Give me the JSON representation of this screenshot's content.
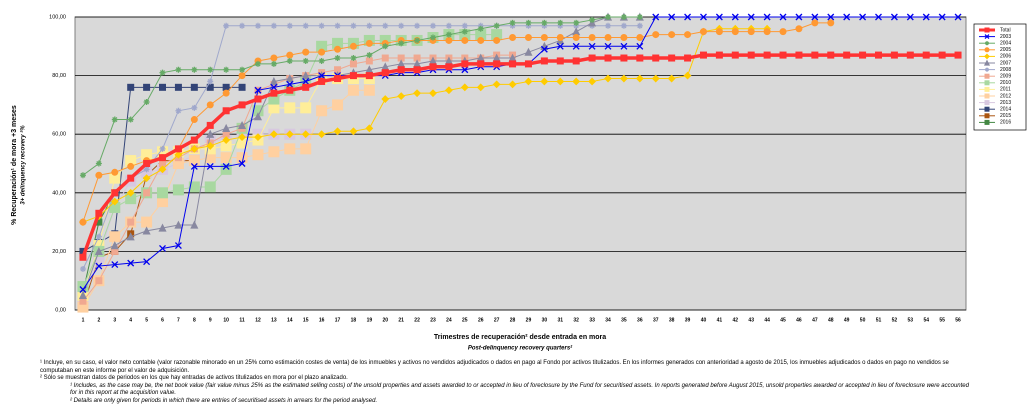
{
  "chart_data": {
    "type": "line",
    "y_title": "% Recuperación¹ de mora +3 meses",
    "y_subtitle": "3+ delinquency recovery ²%",
    "x_title": "Trimestres de recuperación² desde entrada en mora",
    "x_subtitle": "Post-delinquency recovery quarters²",
    "categories": [
      "1",
      "2",
      "3",
      "4",
      "5",
      "6",
      "7",
      "8",
      "9",
      "10",
      "11",
      "12",
      "13",
      "14",
      "15",
      "16",
      "17",
      "18",
      "19",
      "20",
      "21",
      "22",
      "23",
      "24",
      "25",
      "26",
      "27",
      "28",
      "29",
      "30",
      "31",
      "32",
      "33",
      "34",
      "35",
      "36",
      "37",
      "38",
      "39",
      "40",
      "41",
      "42",
      "43",
      "44",
      "45",
      "46",
      "47",
      "48",
      "49",
      "50",
      "51",
      "52",
      "53",
      "54",
      "55",
      "56"
    ],
    "ylim": [
      0,
      100
    ],
    "yticks": [
      {
        "value": 0,
        "label": "0,00"
      },
      {
        "value": 20,
        "label": "20,00"
      },
      {
        "value": 40,
        "label": "40,00"
      },
      {
        "value": 60,
        "label": "60,00"
      },
      {
        "value": 80,
        "label": "80,00"
      },
      {
        "value": 100,
        "label": "100,00"
      }
    ],
    "grid": true,
    "legend": "right",
    "series": [
      {
        "name": "Total",
        "color": "#ff3333",
        "marker": "square",
        "values": [
          18,
          33,
          40,
          45,
          50,
          52,
          55,
          58,
          63,
          68,
          70,
          72,
          74,
          75,
          76,
          78,
          79,
          80,
          80,
          81,
          82,
          82,
          83,
          83,
          84,
          84,
          84,
          84,
          84,
          85,
          85,
          85,
          86,
          86,
          86,
          86,
          86,
          86,
          86,
          87,
          87,
          87,
          87,
          87,
          87,
          87,
          87,
          87,
          87,
          87,
          87,
          87,
          87,
          87,
          87,
          87
        ]
      },
      {
        "name": "2003",
        "color": "#0000ee",
        "marker": "x",
        "values": [
          7,
          15,
          15.5,
          16,
          16.5,
          21,
          22,
          49,
          49,
          49,
          50,
          75,
          76,
          77,
          78,
          80,
          80,
          80,
          80,
          80,
          81,
          81,
          82,
          82,
          82,
          83,
          83,
          84,
          84,
          89,
          90,
          90,
          90,
          90,
          90,
          90,
          100,
          100,
          100,
          100,
          100,
          100,
          100,
          100,
          100,
          100,
          100,
          100,
          100,
          100,
          100,
          100,
          100,
          100,
          100,
          100
        ]
      },
      {
        "name": "2004",
        "color": "#66aa66",
        "marker": "star",
        "values": [
          46,
          50,
          65,
          65,
          71,
          81,
          82,
          82,
          82,
          82,
          82,
          84,
          84,
          85,
          85,
          85,
          86,
          86,
          87,
          90,
          91,
          92,
          93,
          94,
          95,
          96,
          97,
          98,
          98,
          98,
          98,
          98,
          99,
          100,
          100,
          100,
          null,
          null,
          null,
          null,
          null,
          null,
          null,
          null,
          null,
          null,
          null,
          null,
          null,
          null,
          null,
          null,
          null,
          null,
          null,
          null
        ]
      },
      {
        "name": "2005",
        "color": "#ff9933",
        "marker": "circle",
        "values": [
          30,
          46,
          47,
          49,
          51,
          52,
          55,
          65,
          70,
          74,
          80,
          85,
          86,
          87,
          88,
          88,
          89,
          90,
          91,
          91,
          92,
          92,
          92,
          92,
          92,
          92,
          92,
          93,
          93,
          93,
          93,
          93,
          93,
          93,
          93,
          93,
          94,
          94,
          94,
          95,
          95,
          95,
          95,
          95,
          95,
          96,
          98,
          98,
          null,
          null,
          null,
          null,
          null,
          null,
          null,
          null
        ]
      },
      {
        "name": "2006",
        "color": "#ffcc00",
        "marker": "diamond",
        "values": [
          30,
          32,
          37,
          40,
          45,
          48,
          53,
          55,
          56,
          58,
          59,
          59,
          60,
          60,
          60,
          60,
          61,
          61,
          62,
          72,
          73,
          74,
          74,
          75,
          76,
          76,
          77,
          77,
          78,
          78,
          78,
          78,
          78,
          79,
          79,
          79,
          79,
          79,
          80,
          95,
          96,
          96,
          96,
          96,
          null,
          null,
          null,
          null,
          null,
          null,
          null,
          null,
          null,
          null,
          null,
          null
        ]
      },
      {
        "name": "2007",
        "color": "#8888a0",
        "marker": "triangle",
        "values": [
          5,
          20,
          22,
          25,
          27,
          28,
          29,
          29,
          60,
          62,
          63,
          66,
          78,
          79,
          80,
          80,
          80,
          81,
          82,
          83,
          84,
          84,
          85,
          85,
          85,
          86,
          86,
          86,
          88,
          90,
          92,
          95,
          98,
          100,
          100,
          100,
          null,
          null,
          null,
          null,
          null,
          null,
          null,
          null,
          null,
          null,
          null,
          null,
          null,
          null,
          null,
          null,
          null,
          null,
          null,
          null
        ]
      },
      {
        "name": "2008",
        "color": "#a0a8cc",
        "marker": "star",
        "values": [
          14,
          25,
          40,
          45,
          48,
          55,
          68,
          69,
          78,
          97,
          97,
          97,
          97,
          97,
          97,
          97,
          97,
          97,
          97,
          97,
          97,
          97,
          97,
          97,
          97,
          97,
          97,
          97,
          97,
          97,
          97,
          97,
          97,
          97,
          97,
          97,
          null,
          null,
          null,
          null,
          null,
          null,
          null,
          null,
          null,
          null,
          null,
          null,
          null,
          null,
          null,
          null,
          null,
          null,
          null,
          null
        ]
      },
      {
        "name": "2009",
        "color": "#f0a890",
        "marker": "square",
        "values": [
          3,
          10,
          20,
          30,
          40,
          50,
          52,
          55,
          57,
          60,
          62,
          75,
          77,
          79,
          80,
          81,
          82,
          84,
          85,
          86,
          86,
          86,
          86,
          86,
          86,
          86,
          87,
          87,
          null,
          null,
          null,
          null,
          null,
          null,
          null,
          null,
          null,
          null,
          null,
          null,
          null,
          null,
          null,
          null,
          null,
          null,
          null,
          null,
          null,
          null,
          null,
          null,
          null,
          null,
          null,
          null
        ]
      },
      {
        "name": "2010",
        "color": "#a8d8a0",
        "marker": "square",
        "values": [
          8,
          20,
          35,
          38,
          40,
          40,
          41,
          42,
          42,
          48,
          62,
          68,
          72,
          75,
          78,
          90,
          91,
          91,
          92,
          92,
          92,
          92,
          93,
          94,
          94,
          94,
          94,
          null,
          null,
          null,
          null,
          null,
          null,
          null,
          null,
          null,
          null,
          null,
          null,
          null,
          null,
          null,
          null,
          null,
          null,
          null,
          null,
          null,
          null,
          null,
          null,
          null,
          null,
          null,
          null,
          null
        ]
      },
      {
        "name": "2011",
        "color": "#ffee99",
        "marker": "square",
        "values": [
          5,
          22,
          45,
          51,
          53,
          54,
          54,
          55,
          55,
          56,
          57,
          58,
          69,
          69,
          69,
          79,
          79,
          79,
          79,
          null,
          null,
          null,
          null,
          null,
          null,
          null,
          null,
          null,
          null,
          null,
          null,
          null,
          null,
          null,
          null,
          null,
          null,
          null,
          null,
          null,
          null,
          null,
          null,
          null,
          null,
          null,
          null,
          null,
          null,
          null,
          null,
          null,
          null,
          null,
          null,
          null
        ]
      },
      {
        "name": "2012",
        "color": "#ffd0a0",
        "marker": "square",
        "values": [
          1,
          10,
          25,
          30,
          30,
          37,
          50,
          51,
          52,
          52,
          52,
          53,
          54,
          55,
          55,
          68,
          70,
          75,
          75,
          null,
          null,
          null,
          null,
          null,
          null,
          null,
          null,
          null,
          null,
          null,
          null,
          null,
          null,
          null,
          null,
          null,
          null,
          null,
          null,
          null,
          null,
          null,
          null,
          null,
          null,
          null,
          null,
          null,
          null,
          null,
          null,
          null,
          null,
          null,
          null,
          null
        ]
      },
      {
        "name": "2013",
        "color": "#d8c8e0",
        "marker": "square",
        "values": [
          3,
          18,
          35,
          44,
          47,
          48,
          50,
          53,
          58,
          58,
          59,
          60,
          60,
          60,
          60,
          null,
          null,
          null,
          null,
          null,
          null,
          null,
          null,
          null,
          null,
          null,
          null,
          null,
          null,
          null,
          null,
          null,
          null,
          null,
          null,
          null,
          null,
          null,
          null,
          null,
          null,
          null,
          null,
          null,
          null,
          null,
          null,
          null,
          null,
          null,
          null,
          null,
          null,
          null,
          null,
          null
        ]
      },
      {
        "name": "2014",
        "color": "#334477",
        "marker": "square",
        "values": [
          20,
          23,
          26,
          76,
          76,
          76,
          76,
          76,
          76,
          76,
          76,
          null,
          null,
          null,
          null,
          null,
          null,
          null,
          null,
          null,
          null,
          null,
          null,
          null,
          null,
          null,
          null,
          null,
          null,
          null,
          null,
          null,
          null,
          null,
          null,
          null,
          null,
          null,
          null,
          null,
          null,
          null,
          null,
          null,
          null,
          null,
          null,
          null,
          null,
          null,
          null,
          null,
          null,
          null,
          null,
          null
        ]
      },
      {
        "name": "2015",
        "color": "#aa5511",
        "marker": "square",
        "values": [
          1,
          18,
          20,
          26,
          46,
          51,
          51,
          51,
          null,
          null,
          null,
          null,
          null,
          null,
          null,
          null,
          null,
          null,
          null,
          null,
          null,
          null,
          null,
          null,
          null,
          null,
          null,
          null,
          null,
          null,
          null,
          null,
          null,
          null,
          null,
          null,
          null,
          null,
          null,
          null,
          null,
          null,
          null,
          null,
          null,
          null,
          null,
          null,
          null,
          null,
          null,
          null,
          null,
          null,
          null,
          null
        ]
      },
      {
        "name": "2016",
        "color": "#448844",
        "marker": "square",
        "values": [
          6,
          30,
          40,
          null,
          null,
          null,
          null,
          null,
          null,
          null,
          null,
          null,
          null,
          null,
          null,
          null,
          null,
          null,
          null,
          null,
          null,
          null,
          null,
          null,
          null,
          null,
          null,
          null,
          null,
          null,
          null,
          null,
          null,
          null,
          null,
          null,
          null,
          null,
          null,
          null,
          null,
          null,
          null,
          null,
          null,
          null,
          null,
          null,
          null,
          null,
          null,
          null,
          null,
          null,
          null,
          null
        ]
      }
    ]
  },
  "notes": [
    "¹ Incluye, en su caso, el valor neto contable (valor razonable minorado en un 25% como estimación costes de venta) de los inmuebles y activos no vendidos adjudicados o dados en pago al Fondo por activos titulizados. En los informes generados con anterioridad a agosto de 2015, los inmuebles adjudicados o dados en pago no vendidos se computaban en este informe por el valor de adquisición.",
    "² Sólo se muestran datos de periodos en los que hay entradas de activos titulizados en mora por el plazo analizado.",
    "¹ Includes, as the case may be, the net book value (fair value minus 25% as the estimated selling costs) of the unsold properties and assets awarded to or accepted in lieu of foreclosure by the Fund for securitised assets. In reports generated before August 2015, unsold properties awarded or accepted in lieu of foreclosure were accounted for in this report at the acquisition value.",
    "² Details are only given for periods in which there are entries of securitised assets in arrears for the period analysed."
  ]
}
